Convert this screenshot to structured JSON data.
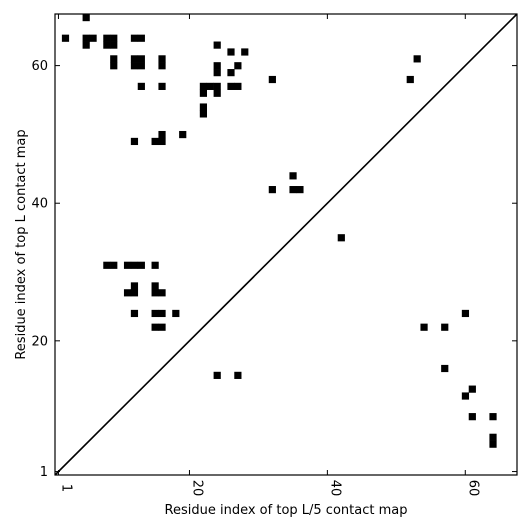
{
  "chart_data": {
    "type": "heatmap",
    "title": "",
    "xlabel": "Residue index of top L/5 contact map",
    "ylabel": "Residue index of top L contact map",
    "xlim": [
      0.5,
      67.5
    ],
    "ylim": [
      0.5,
      67.5
    ],
    "x_ticks": [
      1,
      20,
      40,
      60
    ],
    "y_ticks": [
      1,
      20,
      40,
      60
    ],
    "grid": false,
    "diagonal": true,
    "color": "#000000",
    "upper_contacts": [
      [
        5,
        67
      ],
      [
        2,
        64
      ],
      [
        5,
        64
      ],
      [
        6,
        64
      ],
      [
        8,
        64
      ],
      [
        9,
        64
      ],
      [
        12,
        64
      ],
      [
        13,
        64
      ],
      [
        5,
        63
      ],
      [
        8,
        63
      ],
      [
        9,
        63
      ],
      [
        24,
        63
      ],
      [
        26,
        62
      ],
      [
        28,
        62
      ],
      [
        9,
        61
      ],
      [
        12,
        61
      ],
      [
        13,
        61
      ],
      [
        16,
        61
      ],
      [
        9,
        60
      ],
      [
        12,
        60
      ],
      [
        13,
        60
      ],
      [
        16,
        60
      ],
      [
        24,
        60
      ],
      [
        27,
        60
      ],
      [
        24,
        59
      ],
      [
        26,
        59
      ],
      [
        32,
        58
      ],
      [
        13,
        57
      ],
      [
        16,
        57
      ],
      [
        22,
        57
      ],
      [
        23,
        57
      ],
      [
        24,
        57
      ],
      [
        26,
        57
      ],
      [
        27,
        57
      ],
      [
        22,
        56
      ],
      [
        24,
        56
      ],
      [
        22,
        54
      ],
      [
        22,
        53
      ],
      [
        16,
        50
      ],
      [
        19,
        50
      ],
      [
        12,
        49
      ],
      [
        15,
        49
      ],
      [
        16,
        49
      ],
      [
        35,
        44
      ],
      [
        32,
        42
      ],
      [
        35,
        42
      ],
      [
        36,
        42
      ],
      [
        8,
        31
      ],
      [
        9,
        31
      ],
      [
        11,
        31
      ],
      [
        12,
        31
      ],
      [
        13,
        31
      ],
      [
        15,
        31
      ],
      [
        12,
        28
      ],
      [
        15,
        28
      ],
      [
        11,
        27
      ],
      [
        12,
        27
      ],
      [
        15,
        27
      ],
      [
        16,
        27
      ],
      [
        12,
        24
      ],
      [
        15,
        24
      ],
      [
        16,
        24
      ],
      [
        18,
        24
      ],
      [
        15,
        22
      ],
      [
        16,
        22
      ],
      [
        24,
        15
      ],
      [
        27,
        15
      ]
    ],
    "lower_contacts": [
      [
        53,
        61
      ],
      [
        52,
        58
      ],
      [
        42,
        35
      ],
      [
        60,
        24
      ],
      [
        54,
        22
      ],
      [
        57,
        22
      ],
      [
        57,
        16
      ],
      [
        61,
        13
      ],
      [
        60,
        12
      ],
      [
        64,
        9
      ],
      [
        61,
        9
      ],
      [
        64,
        6
      ],
      [
        64,
        5
      ]
    ]
  }
}
